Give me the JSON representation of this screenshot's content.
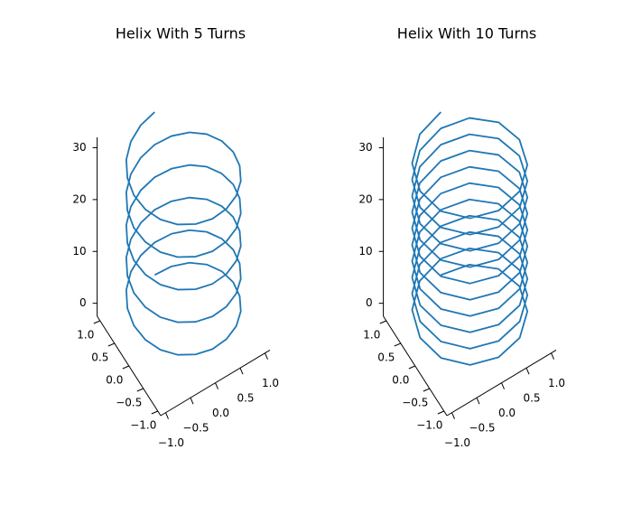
{
  "chart_data": [
    {
      "type": "line3d",
      "title": "Helix With 5 Turns",
      "series": [
        {
          "color": "#1f77b4",
          "x": [
            0,
            0.31,
            0.59,
            0.81,
            0.95,
            1,
            0.95,
            0.81,
            0.59,
            0.31,
            0,
            -0.31,
            -0.59,
            -0.81,
            -0.95,
            -1,
            -0.95,
            -0.81,
            -0.59,
            -0.31,
            0,
            0.31,
            0.59,
            0.81,
            0.95,
            1,
            0.95,
            0.81,
            0.59,
            0.31,
            0,
            -0.31,
            -0.59,
            -0.81,
            -0.95,
            -1,
            -0.95,
            -0.81,
            -0.59,
            -0.31,
            0,
            0.31,
            0.59,
            0.81,
            0.95,
            1,
            0.95,
            0.81,
            0.59,
            0.31,
            0,
            -0.31,
            -0.59,
            -0.81,
            -0.95,
            -1,
            -0.95,
            -0.81,
            -0.59,
            -0.31,
            0,
            0.31,
            0.59,
            0.81,
            0.95,
            1,
            0.95,
            0.81,
            0.59,
            0.31,
            0,
            -0.31,
            -0.59,
            -0.81,
            -0.95,
            -1,
            -0.95,
            -0.81,
            -0.59,
            -0.31,
            0,
            0.31,
            0.59,
            0.81,
            0.95,
            1,
            0.95,
            0.81,
            0.59,
            0.31,
            0,
            -0.31,
            -0.59,
            -0.81,
            -0.95,
            -1,
            -0.95,
            -0.81,
            -0.59,
            -0.31,
            0
          ],
          "y": [
            1,
            0.95,
            0.81,
            0.59,
            0.31,
            0,
            -0.31,
            -0.59,
            -0.81,
            -0.95,
            -1,
            -0.95,
            -0.81,
            -0.59,
            -0.31,
            0,
            0.31,
            0.59,
            0.81,
            0.95,
            1,
            0.95,
            0.81,
            0.59,
            0.31,
            0,
            -0.31,
            -0.59,
            -0.81,
            -0.95,
            -1,
            -0.95,
            -0.81,
            -0.59,
            -0.31,
            0,
            0.31,
            0.59,
            0.81,
            0.95,
            1,
            0.95,
            0.81,
            0.59,
            0.31,
            0,
            -0.31,
            -0.59,
            -0.81,
            -0.95,
            -1,
            -0.95,
            -0.81,
            -0.59,
            -0.31,
            0,
            0.31,
            0.59,
            0.81,
            0.95,
            1,
            0.95,
            0.81,
            0.59,
            0.31,
            0,
            -0.31,
            -0.59,
            -0.81,
            -0.95,
            -1,
            -0.95,
            -0.81,
            -0.59,
            -0.31,
            0,
            0.31,
            0.59,
            0.81,
            0.95,
            1,
            0.95,
            0.81,
            0.59,
            0.31,
            0,
            -0.31,
            -0.59,
            -0.81,
            -0.95,
            -1,
            -0.95,
            -0.81,
            -0.59,
            -0.31,
            0,
            0.31,
            0.59,
            0.81,
            0.95,
            1
          ],
          "z": [
            0,
            0.31,
            0.63,
            0.94,
            1.26,
            1.57,
            1.88,
            2.2,
            2.51,
            2.83,
            3.14,
            3.46,
            3.77,
            4.08,
            4.4,
            4.71,
            5.03,
            5.34,
            5.65,
            5.97,
            6.28,
            6.6,
            6.91,
            7.23,
            7.54,
            7.85,
            8.17,
            8.48,
            8.8,
            9.11,
            9.42,
            9.74,
            10.05,
            10.37,
            10.68,
            11,
            11.31,
            11.62,
            11.94,
            12.25,
            12.57,
            12.88,
            13.19,
            13.51,
            13.82,
            14.14,
            14.45,
            14.77,
            15.08,
            15.39,
            15.71,
            16.02,
            16.34,
            16.65,
            16.96,
            17.28,
            17.59,
            17.91,
            18.22,
            18.54,
            18.85,
            19.16,
            19.48,
            19.79,
            20.11,
            20.42,
            20.73,
            21.05,
            21.36,
            21.68,
            21.99,
            22.31,
            22.62,
            22.93,
            23.25,
            23.56,
            23.88,
            24.19,
            24.5,
            24.82,
            25.13,
            25.45,
            25.76,
            26.08,
            26.39,
            26.7,
            27.02,
            27.33,
            27.65,
            27.96,
            28.27,
            28.59,
            28.9,
            29.22,
            29.53,
            29.85,
            30.16,
            30.47,
            30.79,
            31.1,
            31.42
          ]
        }
      ],
      "xlim": [
        -1.1,
        1.1
      ],
      "ylim": [
        -1.1,
        1.1
      ],
      "zlim": [
        -2.5,
        32
      ],
      "xticks": [
        {
          "value": -1,
          "label": "−1.0"
        },
        {
          "value": -0.5,
          "label": "−0.5"
        },
        {
          "value": 0,
          "label": "0.0"
        },
        0.5,
        {
          "value": 1,
          "label": "1.0"
        }
      ],
      "yticks": [
        {
          "value": -1,
          "label": "−1.0"
        },
        {
          "value": -0.5,
          "label": "−0.5"
        },
        {
          "value": 0,
          "label": "0.0"
        },
        0.5,
        {
          "value": 1,
          "label": "1.0"
        }
      ],
      "zticks": [
        0,
        10,
        20,
        30
      ]
    },
    {
      "type": "line3d",
      "title": "Helix With 10 Turns",
      "series": [
        {
          "color": "#1f77b4",
          "x": [
            0,
            0.5,
            0.87,
            1,
            0.87,
            0.5,
            0,
            -0.5,
            -0.87,
            -1,
            -0.87,
            -0.5,
            0,
            0.5,
            0.87,
            1,
            0.87,
            0.5,
            0,
            -0.5,
            -0.87,
            -1,
            -0.87,
            -0.5,
            0,
            0.5,
            0.87,
            1,
            0.87,
            0.5,
            0,
            -0.5,
            -0.87,
            -1,
            -0.87,
            -0.5,
            0,
            0.5,
            0.87,
            1,
            0.87,
            0.5,
            0,
            -0.5,
            -0.87,
            -1,
            -0.87,
            -0.5,
            0,
            0.5,
            0.87,
            1,
            0.87,
            0.5,
            0,
            -0.5,
            -0.87,
            -1,
            -0.87,
            -0.5,
            0,
            0.5,
            0.87,
            1,
            0.87,
            0.5,
            0,
            -0.5,
            -0.87,
            -1,
            -0.87,
            -0.5,
            0,
            0.5,
            0.87,
            1,
            0.87,
            0.5,
            0,
            -0.5,
            -0.87,
            -1,
            -0.87,
            -0.5,
            0,
            0.5,
            0.87,
            1,
            0.87,
            0.5,
            0,
            -0.5,
            -0.87,
            -1,
            -0.87,
            -0.5,
            0,
            0.5,
            0.87,
            1,
            0.87,
            0.5,
            0,
            -0.5,
            -0.87,
            -1,
            -0.87,
            -0.5,
            0,
            0.5,
            0.87,
            1,
            0.87,
            0.5,
            0,
            -0.5,
            -0.87,
            -1,
            -0.87,
            -0.5,
            0
          ],
          "y": [
            1,
            0.87,
            0.5,
            0,
            -0.5,
            -0.87,
            -1,
            -0.87,
            -0.5,
            0,
            0.5,
            0.87,
            1,
            0.87,
            0.5,
            0,
            -0.5,
            -0.87,
            -1,
            -0.87,
            -0.5,
            0,
            0.5,
            0.87,
            1,
            0.87,
            0.5,
            0,
            -0.5,
            -0.87,
            -1,
            -0.87,
            -0.5,
            0,
            0.5,
            0.87,
            1,
            0.87,
            0.5,
            0,
            -0.5,
            -0.87,
            -1,
            -0.87,
            -0.5,
            0,
            0.5,
            0.87,
            1,
            0.87,
            0.5,
            0,
            -0.5,
            -0.87,
            -1,
            -0.87,
            -0.5,
            0,
            0.5,
            0.87,
            1,
            0.87,
            0.5,
            0,
            -0.5,
            -0.87,
            -1,
            -0.87,
            -0.5,
            0,
            0.5,
            0.87,
            1,
            0.87,
            0.5,
            0,
            -0.5,
            -0.87,
            -1,
            -0.87,
            -0.5,
            0,
            0.5,
            0.87,
            1,
            0.87,
            0.5,
            0,
            -0.5,
            -0.87,
            -1,
            -0.87,
            -0.5,
            0,
            0.5,
            0.87,
            1,
            0.87,
            0.5,
            0,
            -0.5,
            -0.87,
            -1,
            -0.87,
            -0.5,
            0,
            0.5,
            0.87,
            1,
            0.87,
            0.5,
            0,
            -0.5,
            -0.87,
            -1,
            -0.87,
            -0.5,
            0,
            0.5,
            0.87,
            1
          ],
          "z": [
            0,
            0.26,
            0.52,
            0.79,
            1.05,
            1.31,
            1.57,
            1.83,
            2.09,
            2.36,
            2.62,
            2.88,
            3.14,
            3.4,
            3.67,
            3.93,
            4.19,
            4.45,
            4.71,
            4.97,
            5.24,
            5.5,
            5.76,
            6.02,
            6.28,
            6.54,
            6.81,
            7.07,
            7.33,
            7.59,
            7.85,
            8.12,
            8.38,
            8.64,
            8.9,
            9.16,
            9.42,
            9.69,
            9.95,
            10.21,
            10.47,
            10.73,
            11,
            11.26,
            11.52,
            11.78,
            12.04,
            12.3,
            12.57,
            12.83,
            13.09,
            13.35,
            13.61,
            13.88,
            14.14,
            14.4,
            14.66,
            14.92,
            15.18,
            15.45,
            15.71,
            15.97,
            16.23,
            16.49,
            16.76,
            17.02,
            17.28,
            17.54,
            17.8,
            18.06,
            18.33,
            18.59,
            18.85,
            19.11,
            19.37,
            19.63,
            19.9,
            20.16,
            20.42,
            20.68,
            20.94,
            21.21,
            21.47,
            21.73,
            21.99,
            22.25,
            22.51,
            22.78,
            23.04,
            23.3,
            23.56,
            23.82,
            24.09,
            24.35,
            24.61,
            24.87,
            25.13,
            25.39,
            25.66,
            25.92,
            26.18,
            26.44,
            26.7,
            26.97,
            27.23,
            27.49,
            27.75,
            28.01,
            28.27,
            28.54,
            28.8,
            29.06,
            29.32,
            29.58,
            29.85,
            30.11,
            30.37,
            30.63,
            30.89,
            31.15,
            31.42
          ]
        }
      ],
      "xlim": [
        -1.1,
        1.1
      ],
      "ylim": [
        -1.1,
        1.1
      ],
      "zlim": [
        -2.5,
        32
      ],
      "xticks": [
        {
          "value": -1,
          "label": "−1.0"
        },
        {
          "value": -0.5,
          "label": "−0.5"
        },
        {
          "value": 0,
          "label": "0.0"
        },
        0.5,
        {
          "value": 1,
          "label": "1.0"
        }
      ],
      "yticks": [
        {
          "value": -1,
          "label": "−1.0"
        },
        {
          "value": -0.5,
          "label": "−0.5"
        },
        {
          "value": 0,
          "label": "0.0"
        },
        0.5,
        {
          "value": 1,
          "label": "1.0"
        }
      ],
      "zticks": [
        0,
        10,
        20,
        30
      ]
    }
  ]
}
